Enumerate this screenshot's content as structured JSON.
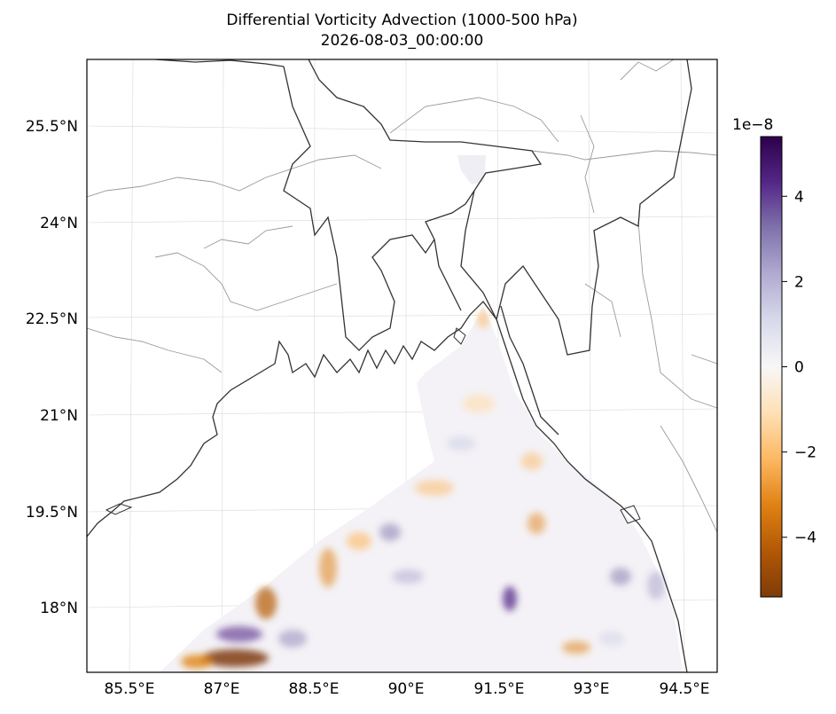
{
  "title": {
    "line1": "Differential Vorticity Advection (1000-500 hPa)",
    "line2": "2026-08-03_00:00:00"
  },
  "map": {
    "lon_ticks": [
      "85.5°E",
      "87°E",
      "88.5°E",
      "90°E",
      "91.5°E",
      "93°E",
      "94.5°E"
    ],
    "lat_ticks": [
      "25.5°N",
      "24°N",
      "22.5°N",
      "21°N",
      "19.5°N",
      "18°N"
    ],
    "features": [
      "coastline",
      "country-borders",
      "state-borders",
      "gridlines"
    ]
  },
  "colorbar": {
    "exponent": "1e−8",
    "tick_labels": [
      "4",
      "2",
      "0",
      "−2",
      "−4"
    ],
    "tick_values": [
      4,
      2,
      0,
      -2,
      -4
    ],
    "vmin": -5.4,
    "vmax": 5.4,
    "colormap": "PuOr",
    "colors": {
      "max": "#2d004b",
      "high": "#8073ac",
      "low_pos": "#d8daeb",
      "zero": "#f7f7f7",
      "low_neg": "#fee0b6",
      "mid_neg": "#fdb863",
      "strong_neg": "#e08214",
      "min": "#7f3b08"
    }
  }
}
